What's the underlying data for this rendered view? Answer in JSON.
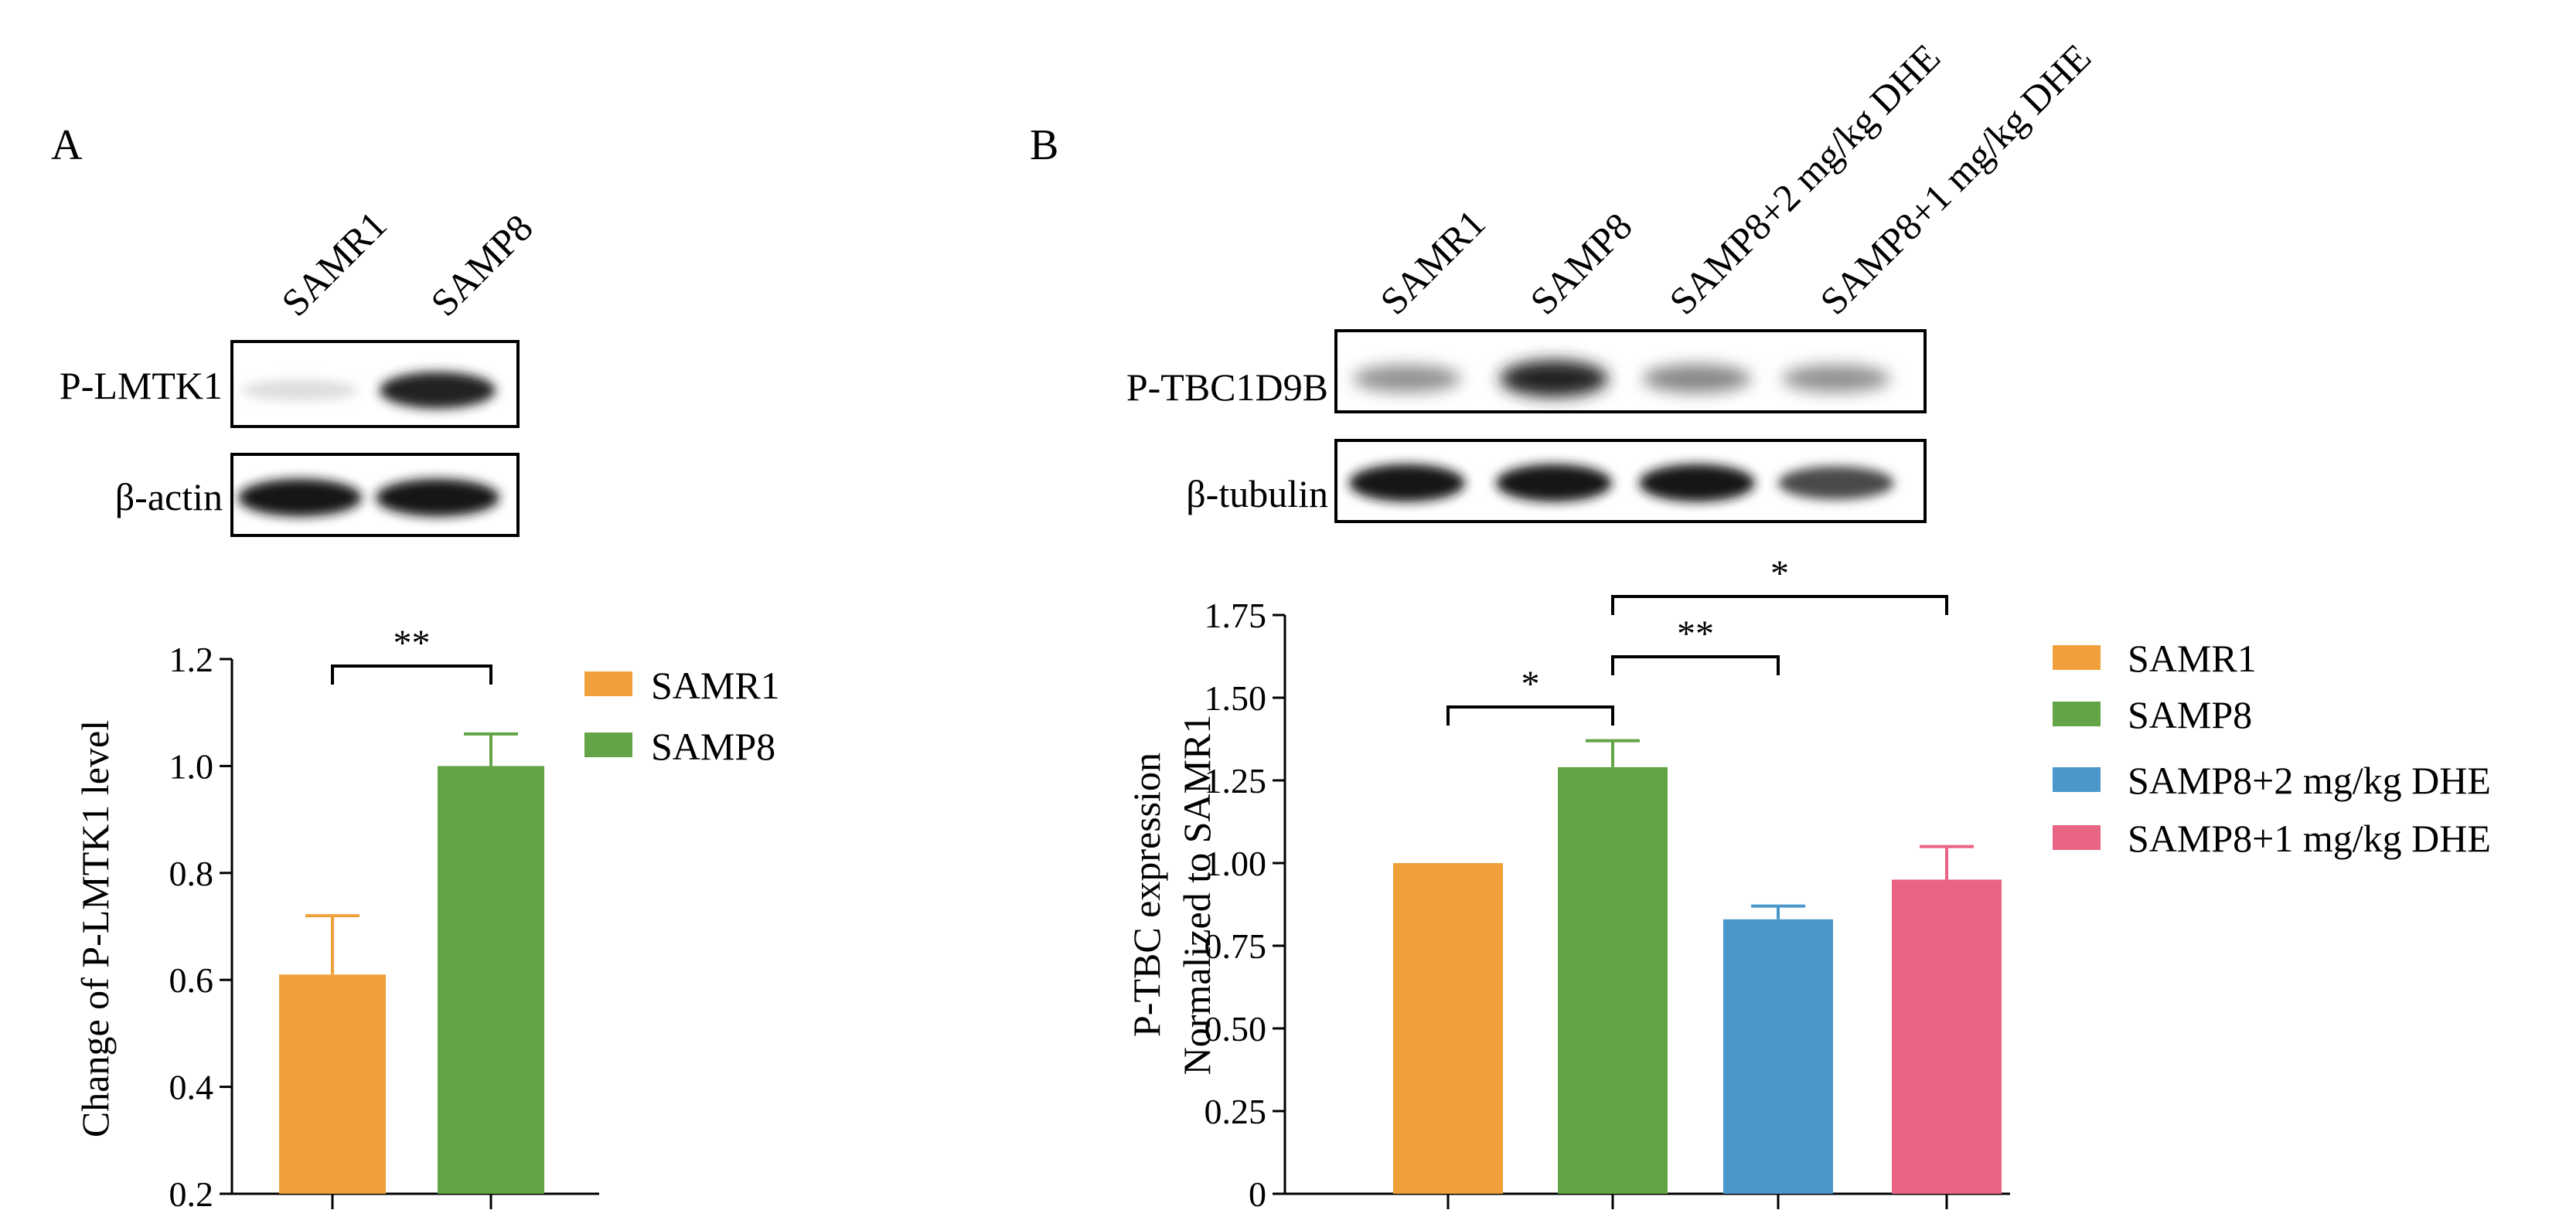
{
  "panel_a": {
    "letter": "A",
    "blot": {
      "lanes": [
        "SAMR1",
        "SAMP8"
      ],
      "rows": [
        {
          "label": "P-LMTK1",
          "intensity": [
            0.06,
            0.9
          ]
        },
        {
          "label": "β-actin",
          "intensity": [
            0.95,
            0.95
          ]
        }
      ]
    }
  },
  "panel_b": {
    "letter": "B",
    "blot": {
      "lanes": [
        "SAMR1",
        "SAMP8",
        "SAMP8+2 mg/kg DHE",
        "SAMP8+1 mg/kg DHE"
      ],
      "rows": [
        {
          "label": "P-TBC1D9B",
          "intensity": [
            0.4,
            0.9,
            0.45,
            0.4
          ]
        },
        {
          "label": "β-tubulin",
          "intensity": [
            0.95,
            0.95,
            0.95,
            0.72
          ]
        }
      ]
    }
  },
  "colors": {
    "SAMR1": "#F0A03A",
    "SAMP8": "#63A446",
    "DHE2": "#4A98CB",
    "DHE1": "#E96383"
  },
  "chart_data": [
    {
      "type": "bar",
      "title": "",
      "xlabel": "",
      "ylabel": "Change of P-LMTK1 level",
      "categories": [
        "SAMR1",
        "SAMP8"
      ],
      "values": [
        0.61,
        1.0
      ],
      "errors": [
        0.11,
        0.06
      ],
      "ylim": [
        0.2,
        1.2
      ],
      "yticks": [
        0.2,
        0.4,
        0.6,
        0.8,
        1.0,
        1.2
      ],
      "ytick_labels": [
        "0.2",
        "0.4",
        "0.6",
        "0.8",
        "1.0",
        "1.2"
      ],
      "legend": [
        "SAMR1",
        "SAMP8"
      ],
      "legend_position": "right",
      "significance": [
        {
          "from": 0,
          "to": 1,
          "label": "**"
        }
      ],
      "grid": false
    },
    {
      "type": "bar",
      "title": "",
      "xlabel": "",
      "ylabel": [
        "P-TBC expression",
        "Normalized to SAMR1"
      ],
      "categories": [
        "SAMR1",
        "SAMP8",
        "SAMP8+2 mg/kg DHE",
        "SAMP8+1 mg/kg DHE"
      ],
      "values": [
        1.0,
        1.29,
        0.83,
        0.95
      ],
      "errors": [
        0.0,
        0.08,
        0.04,
        0.1
      ],
      "ylim": [
        0,
        1.75
      ],
      "yticks": [
        0,
        0.25,
        0.5,
        0.75,
        1.0,
        1.25,
        1.5,
        1.75
      ],
      "ytick_labels": [
        "0",
        "0.25",
        "0.50",
        "0.75",
        "1.00",
        "1.25",
        "1.50",
        "1.75"
      ],
      "legend": [
        "SAMR1",
        "SAMP8",
        "SAMP8+2 mg/kg DHE",
        "SAMP8+1 mg/kg DHE"
      ],
      "legend_position": "right",
      "significance": [
        {
          "from": 0,
          "to": 1,
          "label": "*"
        },
        {
          "from": 1,
          "to": 2,
          "label": "**"
        },
        {
          "from": 1,
          "to": 3,
          "label": "*"
        }
      ],
      "grid": false
    }
  ]
}
